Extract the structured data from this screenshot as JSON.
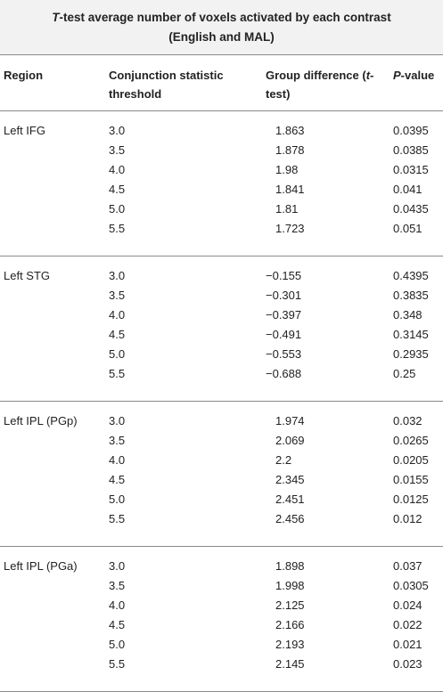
{
  "title": [
    {
      "text": "T",
      "italic": true
    },
    {
      "text": "-test average number of voxels activated by each contrast (English and MAL)",
      "italic": false
    }
  ],
  "header": [
    [
      {
        "text": "Region",
        "italic": false
      }
    ],
    [
      {
        "text": "Conjunction statistic threshold",
        "italic": false
      }
    ],
    [
      {
        "text": "Group difference (",
        "italic": false
      },
      {
        "text": "t",
        "italic": true
      },
      {
        "text": "-test)",
        "italic": false
      }
    ],
    [
      {
        "text": "P",
        "italic": true
      },
      {
        "text": "-value",
        "italic": false
      }
    ]
  ],
  "groups": [
    {
      "region": "Left IFG",
      "rows": [
        [
          "3.0",
          "1.863",
          "0.0395"
        ],
        [
          "3.5",
          "1.878",
          "0.0385"
        ],
        [
          "4.0",
          "1.98",
          "0.0315"
        ],
        [
          "4.5",
          "1.841",
          "0.041"
        ],
        [
          "5.0",
          "1.81",
          "0.0435"
        ],
        [
          "5.5",
          "1.723",
          "0.051"
        ]
      ]
    },
    {
      "region": "Left STG",
      "rows": [
        [
          "3.0",
          "−0.155",
          "0.4395"
        ],
        [
          "3.5",
          "−0.301",
          "0.3835"
        ],
        [
          "4.0",
          "−0.397",
          "0.348"
        ],
        [
          "4.5",
          "−0.491",
          "0.3145"
        ],
        [
          "5.0",
          "−0.553",
          "0.2935"
        ],
        [
          "5.5",
          "−0.688",
          "0.25"
        ]
      ]
    },
    {
      "region": "Left IPL (PGp)",
      "rows": [
        [
          "3.0",
          "1.974",
          "0.032"
        ],
        [
          "3.5",
          "2.069",
          "0.0265"
        ],
        [
          "4.0",
          "2.2",
          "0.0205"
        ],
        [
          "4.5",
          "2.345",
          "0.0155"
        ],
        [
          "5.0",
          "2.451",
          "0.0125"
        ],
        [
          "5.5",
          "2.456",
          "0.012"
        ]
      ]
    },
    {
      "region": "Left IPL (PGa)",
      "rows": [
        [
          "3.0",
          "1.898",
          "0.037"
        ],
        [
          "3.5",
          "1.998",
          "0.0305"
        ],
        [
          "4.0",
          "2.125",
          "0.024"
        ],
        [
          "4.5",
          "2.166",
          "0.022"
        ],
        [
          "5.0",
          "2.193",
          "0.021"
        ],
        [
          "5.5",
          "2.145",
          "0.023"
        ]
      ]
    }
  ]
}
